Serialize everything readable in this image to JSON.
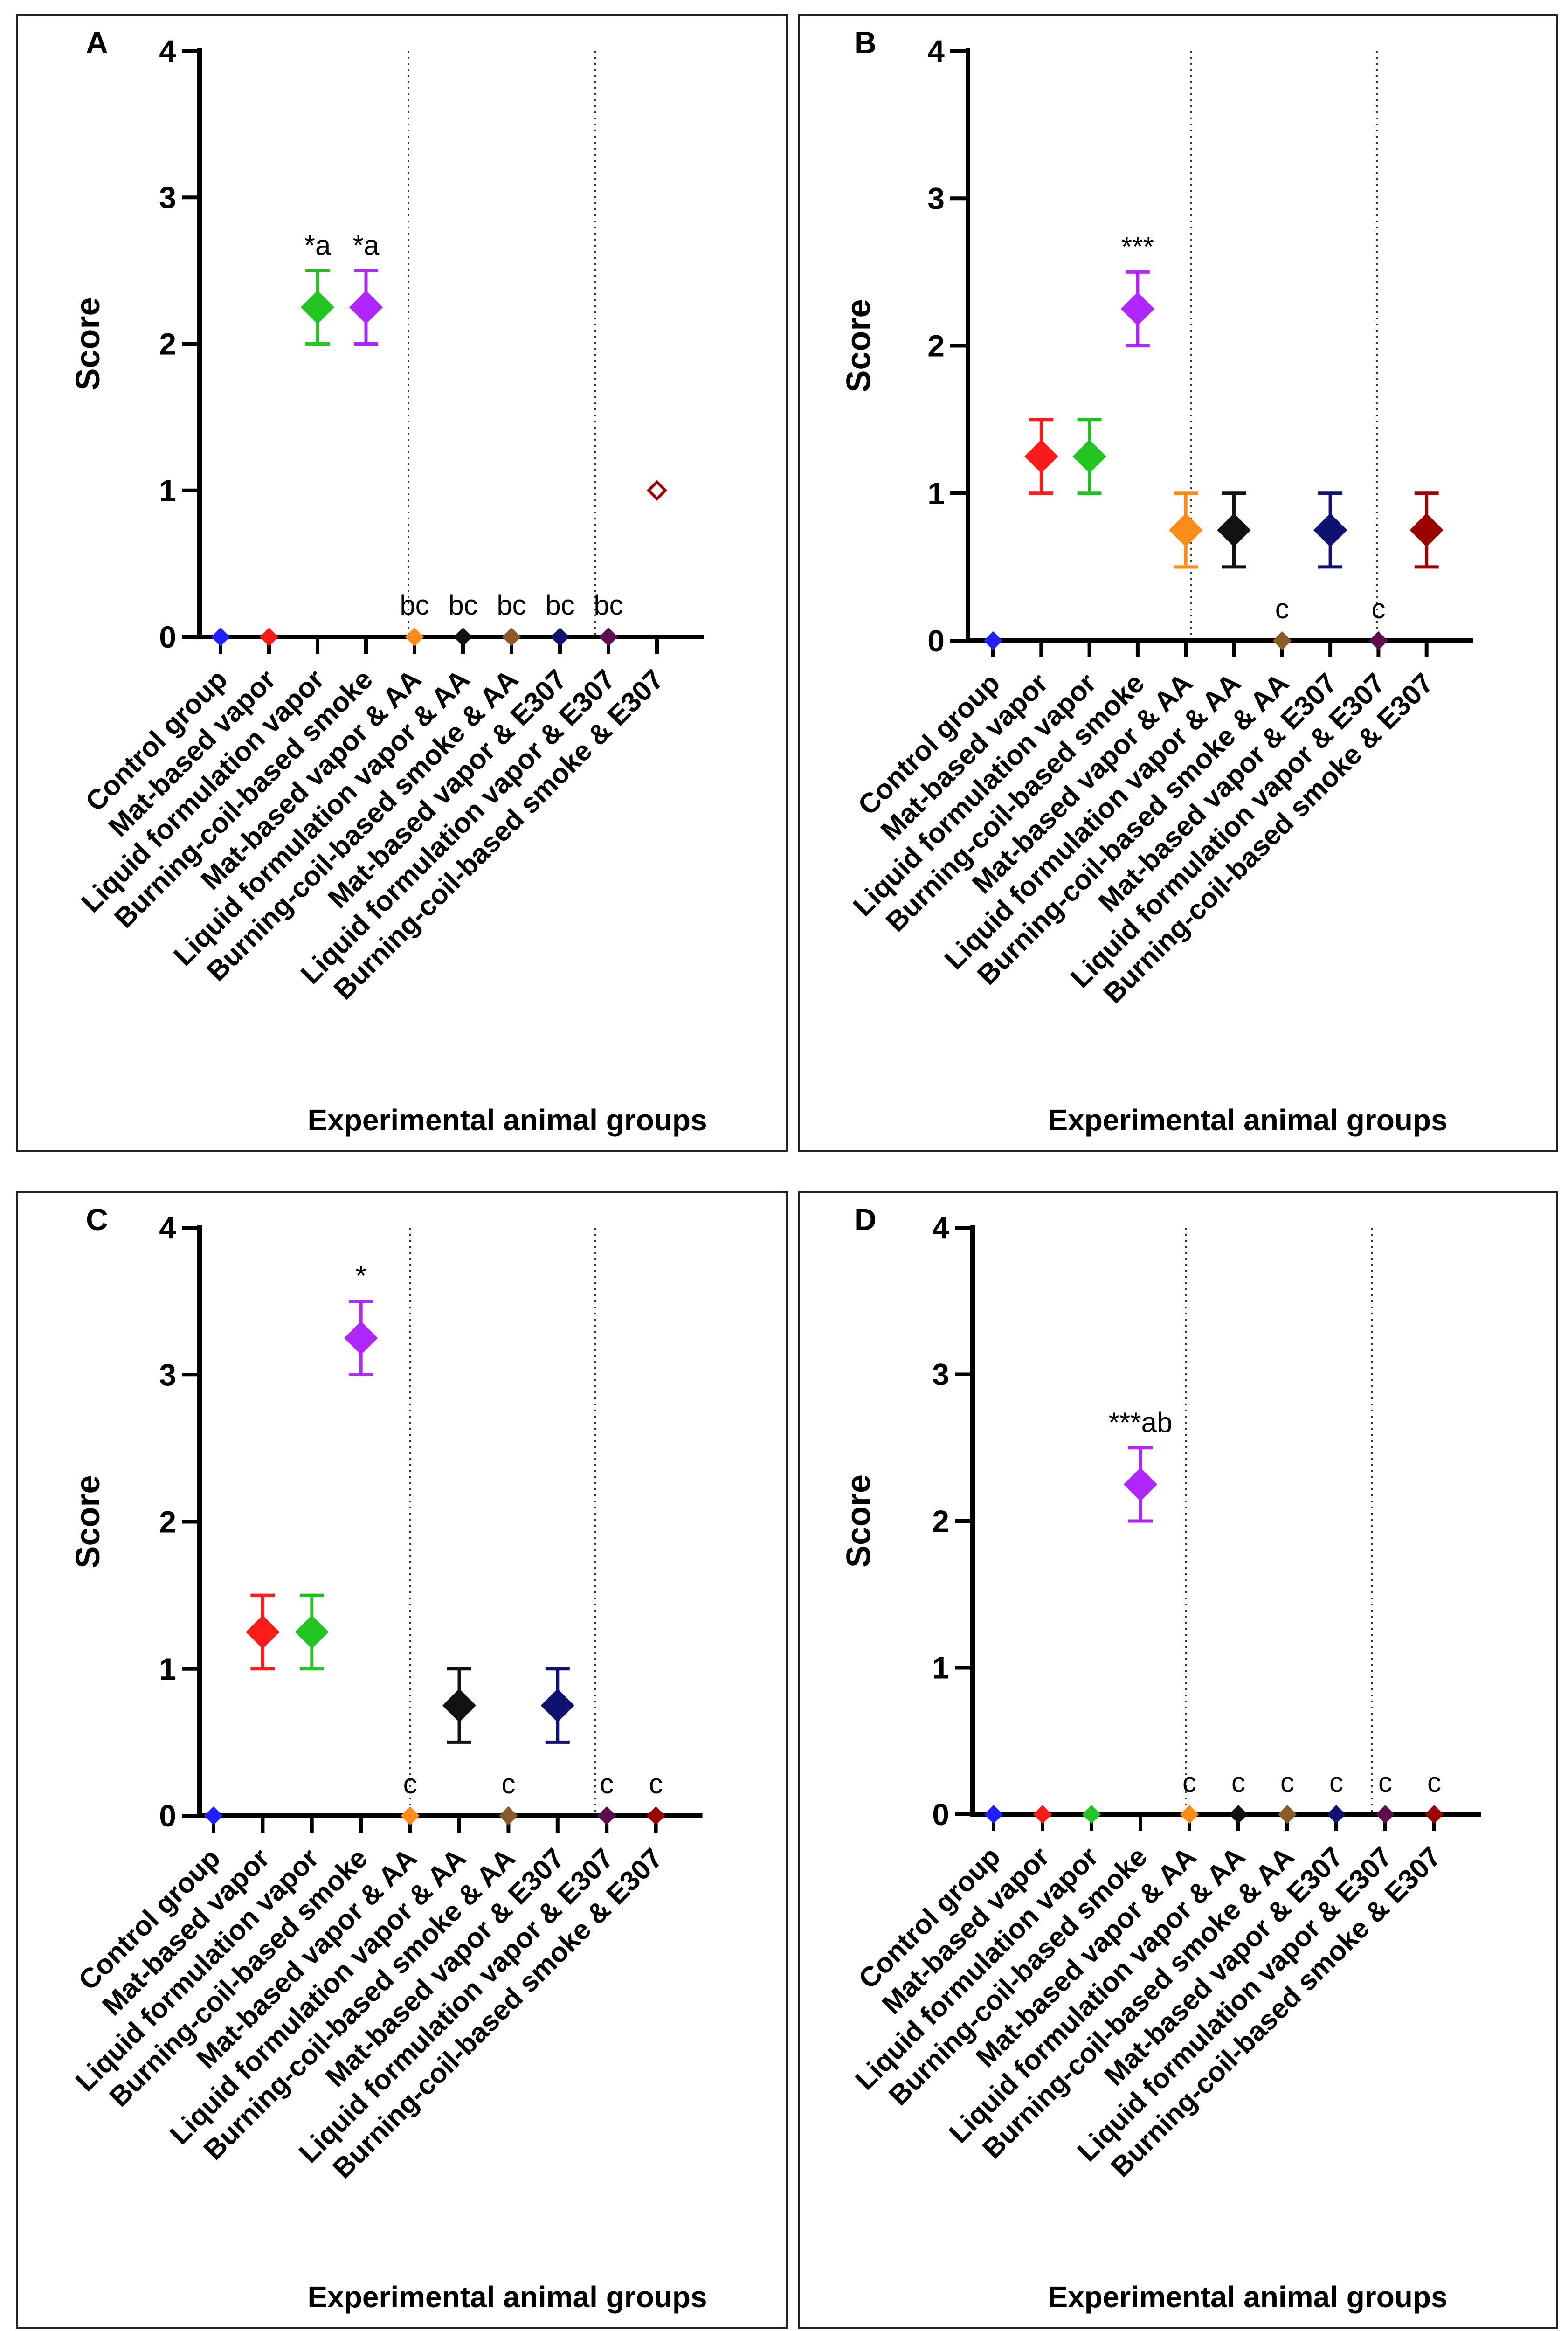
{
  "chart_data": [
    {
      "type": "scatter",
      "panel": "A",
      "ylabel": "Score",
      "xlabel": "Experimental animal groups",
      "ylim": [
        0,
        4
      ],
      "yticks": [
        "0",
        "1",
        "2",
        "3",
        "4"
      ],
      "categories": [
        "Control group",
        "Mat-based vapor",
        "Liquid formulation vapor",
        "Burning-coil-based smoke",
        "Mat-based vapor & AA",
        "Liquid formulation vapor & AA",
        "Burning-coil-based smoke & AA",
        "Mat-based vapor & E307",
        "Liquid formulation vapor & E307",
        "Burning-coil-based smoke & E307"
      ],
      "colors": [
        "#1f1fff",
        "#ff1a1a",
        "#22c422",
        "#b026ff",
        "#ff8c1a",
        "#111111",
        "#8b5a2b",
        "#101070",
        "#5c0f4c",
        "#9a0000"
      ],
      "mean": [
        0,
        0,
        2.25,
        2.25,
        0,
        0,
        0,
        0,
        0,
        1
      ],
      "error": [
        0,
        0,
        0.25,
        0.25,
        0,
        0,
        0,
        0,
        0,
        0
      ],
      "annotations": [
        "",
        "",
        "*a",
        "*a",
        "bc",
        "bc",
        "bc",
        "bc",
        "bc",
        ""
      ]
    },
    {
      "type": "scatter",
      "panel": "B",
      "ylabel": "Score",
      "xlabel": "Experimental animal groups",
      "ylim": [
        0,
        4
      ],
      "yticks": [
        "0",
        "1",
        "2",
        "3",
        "4"
      ],
      "categories": [
        "Control group",
        "Mat-based vapor",
        "Liquid formulation vapor",
        "Burning-coil-based smoke",
        "Mat-based vapor & AA",
        "Liquid formulation vapor & AA",
        "Burning-coil-based smoke & AA",
        "Mat-based vapor & E307",
        "Liquid formulation vapor & E307",
        "Burning-coil-based smoke & E307"
      ],
      "colors": [
        "#1f1fff",
        "#ff1a1a",
        "#22c422",
        "#b026ff",
        "#ff8c1a",
        "#111111",
        "#8b5a2b",
        "#101070",
        "#5c0f4c",
        "#9a0000"
      ],
      "mean": [
        0,
        1.25,
        1.25,
        2.25,
        0.75,
        0.75,
        0,
        0.75,
        0,
        0.75
      ],
      "error": [
        0,
        0.25,
        0.25,
        0.25,
        0.25,
        0.25,
        0,
        0.25,
        0,
        0.25
      ],
      "annotations": [
        "",
        "",
        "",
        "***",
        "",
        "",
        "c",
        "",
        "c",
        ""
      ]
    },
    {
      "type": "scatter",
      "panel": "C",
      "ylabel": "Score",
      "xlabel": "Experimental animal groups",
      "ylim": [
        0,
        4
      ],
      "yticks": [
        "0",
        "1",
        "2",
        "3",
        "4"
      ],
      "categories": [
        "Control group",
        "Mat-based vapor",
        "Liquid formulation vapor",
        "Burning-coil-based smoke",
        "Mat-based vapor & AA",
        "Liquid formulation vapor & AA",
        "Burning-coil-based smoke & AA",
        "Mat-based vapor & E307",
        "Liquid formulation vapor & E307",
        "Burning-coil-based smoke & E307"
      ],
      "colors": [
        "#1f1fff",
        "#ff1a1a",
        "#22c422",
        "#b026ff",
        "#ff8c1a",
        "#111111",
        "#8b5a2b",
        "#101070",
        "#5c0f4c",
        "#9a0000"
      ],
      "mean": [
        0,
        1.25,
        1.25,
        3.25,
        0,
        0.75,
        0,
        0.75,
        0,
        0
      ],
      "error": [
        0,
        0.25,
        0.25,
        0.25,
        0,
        0.25,
        0,
        0.25,
        0,
        0
      ],
      "annotations": [
        "",
        "",
        "",
        "*",
        "c",
        "",
        "c",
        "",
        "c",
        "c"
      ]
    },
    {
      "type": "scatter",
      "panel": "D",
      "ylabel": "Score",
      "xlabel": "Experimental animal groups",
      "ylim": [
        0,
        4
      ],
      "yticks": [
        "0",
        "1",
        "2",
        "3",
        "4"
      ],
      "categories": [
        "Control group",
        "Mat-based vapor",
        "Liquid formulation vapor",
        "Burning-coil-based smoke",
        "Mat-based vapor & AA",
        "Liquid formulation vapor & AA",
        "Burning-coil-based smoke & AA",
        "Mat-based vapor & E307",
        "Liquid formulation vapor & E307",
        "Burning-coil-based smoke & E307"
      ],
      "colors": [
        "#1f1fff",
        "#ff1a1a",
        "#22c422",
        "#b026ff",
        "#ff8c1a",
        "#111111",
        "#8b5a2b",
        "#101070",
        "#5c0f4c",
        "#9a0000"
      ],
      "mean": [
        0,
        0,
        0,
        2.25,
        0,
        0,
        0,
        0,
        0,
        0
      ],
      "error": [
        0,
        0,
        0,
        0.25,
        0,
        0,
        0,
        0,
        0,
        0
      ],
      "annotations": [
        "",
        "",
        "",
        "***ab",
        "c",
        "c",
        "c",
        "c",
        "c",
        "c"
      ]
    }
  ]
}
